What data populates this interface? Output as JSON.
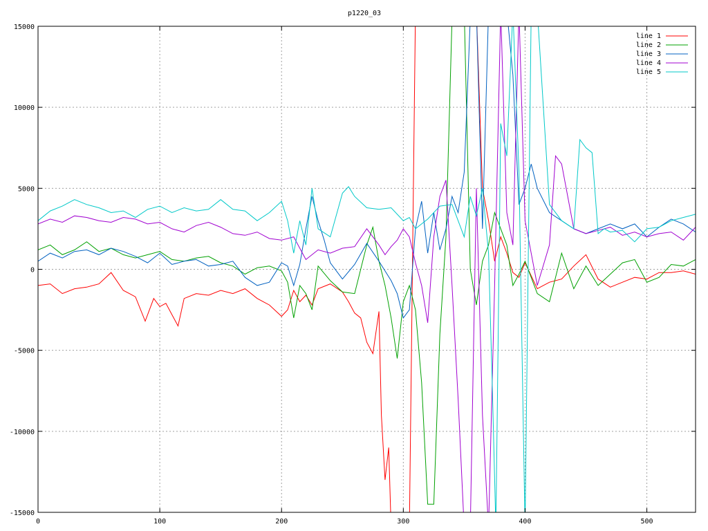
{
  "chart_data": {
    "type": "line",
    "title": "p1220_03",
    "xlabel": "",
    "ylabel": "",
    "xlim": [
      0,
      540
    ],
    "ylim": [
      -15000,
      15000
    ],
    "x_ticks": [
      0,
      100,
      200,
      300,
      400,
      500
    ],
    "y_ticks": [
      -15000,
      -10000,
      -5000,
      0,
      5000,
      10000,
      15000
    ],
    "grid": true,
    "legend_position": "top-right",
    "series": [
      {
        "name": "line 1",
        "color": "#ff0000",
        "x": [
          0,
          10,
          20,
          30,
          40,
          50,
          60,
          70,
          75,
          80,
          88,
          95,
          100,
          105,
          110,
          115,
          120,
          130,
          140,
          150,
          160,
          170,
          180,
          190,
          200,
          205,
          210,
          215,
          220,
          225,
          230,
          240,
          250,
          255,
          260,
          265,
          270,
          275,
          280,
          282,
          285,
          288,
          290,
          293,
          296,
          300,
          305,
          310,
          315,
          320,
          325,
          330,
          335,
          340,
          345,
          350,
          355,
          360,
          365,
          370,
          375,
          380,
          385,
          390,
          395,
          400,
          410,
          420,
          430,
          440,
          450,
          460,
          470,
          480,
          490,
          500,
          510,
          520,
          530,
          540
        ],
        "y": [
          -1000,
          -900,
          -1500,
          -1200,
          -1100,
          -900,
          -200,
          -1300,
          -1500,
          -1700,
          -3200,
          -1800,
          -2300,
          -2100,
          -2800,
          -3500,
          -1800,
          -1500,
          -1600,
          -1300,
          -1500,
          -1200,
          -1800,
          -2200,
          -2900,
          -2500,
          -1300,
          -2000,
          -1600,
          -2200,
          -1200,
          -900,
          -1400,
          -2000,
          -2700,
          -3000,
          -4500,
          -5200,
          -2600,
          -9000,
          -13000,
          -11000,
          -16000,
          -16000,
          -16000,
          -16000,
          -16000,
          16000,
          16000,
          16000,
          16000,
          16000,
          16000,
          16000,
          16000,
          16000,
          16000,
          16000,
          5000,
          3000,
          500,
          2000,
          1000,
          -200,
          -500,
          400,
          -1200,
          -800,
          -600,
          200,
          900,
          -600,
          -1100,
          -800,
          -500,
          -600,
          -200,
          -200,
          -100,
          -300
        ]
      },
      {
        "name": "line 2",
        "color": "#00a000",
        "x": [
          0,
          10,
          20,
          30,
          40,
          50,
          60,
          70,
          80,
          90,
          100,
          110,
          120,
          130,
          140,
          150,
          160,
          170,
          180,
          190,
          200,
          205,
          210,
          215,
          220,
          225,
          230,
          240,
          250,
          260,
          270,
          275,
          280,
          285,
          290,
          295,
          300,
          305,
          310,
          315,
          320,
          325,
          330,
          335,
          340,
          345,
          350,
          355,
          360,
          365,
          370,
          375,
          380,
          385,
          390,
          395,
          400,
          410,
          420,
          430,
          440,
          450,
          460,
          470,
          480,
          490,
          500,
          510,
          520,
          530,
          540
        ],
        "y": [
          1200,
          1500,
          900,
          1200,
          1700,
          1100,
          1300,
          900,
          700,
          900,
          1100,
          600,
          500,
          700,
          800,
          400,
          200,
          -300,
          100,
          200,
          -100,
          -800,
          -3000,
          -1000,
          -1500,
          -2500,
          200,
          -700,
          -1400,
          -1500,
          1500,
          2600,
          500,
          -1000,
          -3000,
          -5500,
          -2000,
          -1000,
          -2500,
          -7000,
          -14500,
          -14500,
          -4000,
          2000,
          15500,
          16000,
          16000,
          0,
          -2200,
          500,
          1500,
          3500,
          2500,
          1500,
          -1000,
          -300,
          500,
          -1500,
          -2000,
          1000,
          -1200,
          200,
          -1000,
          -300,
          400,
          600,
          -800,
          -500,
          300,
          200,
          600
        ]
      },
      {
        "name": "line 3",
        "color": "#0060c0",
        "x": [
          0,
          10,
          20,
          30,
          40,
          50,
          60,
          70,
          80,
          90,
          100,
          110,
          120,
          130,
          140,
          150,
          160,
          170,
          180,
          190,
          200,
          205,
          210,
          215,
          220,
          225,
          230,
          235,
          240,
          250,
          260,
          270,
          280,
          290,
          295,
          300,
          305,
          310,
          315,
          320,
          325,
          330,
          335,
          340,
          345,
          350,
          355,
          360,
          365,
          370,
          375,
          380,
          385,
          390,
          395,
          400,
          405,
          410,
          420,
          430,
          440,
          450,
          460,
          470,
          480,
          490,
          500,
          510,
          520,
          530,
          540
        ],
        "y": [
          500,
          1000,
          700,
          1100,
          1200,
          900,
          1300,
          1100,
          800,
          400,
          1000,
          300,
          500,
          600,
          200,
          300,
          500,
          -500,
          -1000,
          -800,
          400,
          200,
          -1000,
          300,
          2500,
          4500,
          3000,
          1800,
          400,
          -600,
          300,
          1600,
          500,
          -700,
          -1500,
          -3000,
          -2500,
          2500,
          4200,
          1000,
          3500,
          1200,
          2500,
          4500,
          3500,
          6000,
          15500,
          16000,
          2500,
          16000,
          16000,
          16000,
          16000,
          12000,
          4000,
          5000,
          6500,
          5000,
          3500,
          3000,
          2500,
          2200,
          2500,
          2800,
          2500,
          2800,
          2000,
          2600,
          3100,
          2800,
          2300
        ]
      },
      {
        "name": "line 4",
        "color": "#a000d0",
        "x": [
          0,
          10,
          20,
          30,
          40,
          50,
          60,
          70,
          80,
          90,
          100,
          110,
          120,
          130,
          140,
          150,
          160,
          170,
          180,
          190,
          200,
          210,
          220,
          230,
          240,
          250,
          260,
          270,
          275,
          280,
          285,
          290,
          295,
          300,
          305,
          310,
          315,
          320,
          325,
          330,
          335,
          340,
          345,
          350,
          355,
          360,
          365,
          370,
          375,
          380,
          385,
          390,
          395,
          400,
          410,
          420,
          425,
          430,
          440,
          450,
          460,
          470,
          480,
          490,
          500,
          510,
          520,
          530,
          540
        ],
        "y": [
          2800,
          3100,
          2900,
          3300,
          3200,
          3000,
          2900,
          3200,
          3100,
          2800,
          2900,
          2500,
          2300,
          2700,
          2900,
          2600,
          2200,
          2100,
          2300,
          1900,
          1800,
          2000,
          600,
          1200,
          1000,
          1300,
          1400,
          2500,
          2000,
          1500,
          900,
          1400,
          1800,
          2500,
          2000,
          400,
          -1000,
          -3300,
          2000,
          4500,
          5500,
          -1000,
          -8000,
          -16000,
          -16000,
          5000,
          -9000,
          -16000,
          -1000,
          16000,
          3500,
          1500,
          16000,
          3000,
          -1000,
          1500,
          7000,
          6500,
          2500,
          2200,
          2400,
          2600,
          2100,
          2300,
          2000,
          2200,
          2300,
          1800,
          2600
        ]
      },
      {
        "name": "line 5",
        "color": "#00c8c8",
        "x": [
          0,
          10,
          20,
          30,
          40,
          50,
          60,
          70,
          80,
          90,
          100,
          110,
          120,
          130,
          140,
          150,
          160,
          170,
          180,
          190,
          200,
          205,
          210,
          215,
          220,
          225,
          230,
          240,
          250,
          255,
          260,
          270,
          280,
          290,
          300,
          305,
          310,
          320,
          330,
          340,
          345,
          350,
          355,
          360,
          365,
          370,
          373,
          376,
          380,
          385,
          390,
          395,
          400,
          405,
          410,
          420,
          430,
          440,
          445,
          450,
          455,
          460,
          465,
          470,
          480,
          490,
          500,
          510,
          520,
          530,
          540
        ],
        "y": [
          3000,
          3600,
          3900,
          4300,
          4000,
          3800,
          3500,
          3600,
          3200,
          3700,
          3900,
          3500,
          3800,
          3600,
          3700,
          4300,
          3700,
          3600,
          3000,
          3500,
          4200,
          3000,
          1000,
          3000,
          1500,
          5000,
          2500,
          2000,
          4700,
          5100,
          4500,
          3800,
          3700,
          3800,
          3000,
          3200,
          2500,
          3100,
          3900,
          4000,
          3000,
          2000,
          4500,
          3300,
          5000,
          1000,
          -7000,
          -16000,
          9000,
          7000,
          16000,
          6000,
          -16000,
          16000,
          16000,
          4000,
          3000,
          2500,
          8000,
          7500,
          7200,
          2200,
          2500,
          2300,
          2400,
          1700,
          2500,
          2600,
          3000,
          3200,
          3400
        ]
      }
    ]
  }
}
